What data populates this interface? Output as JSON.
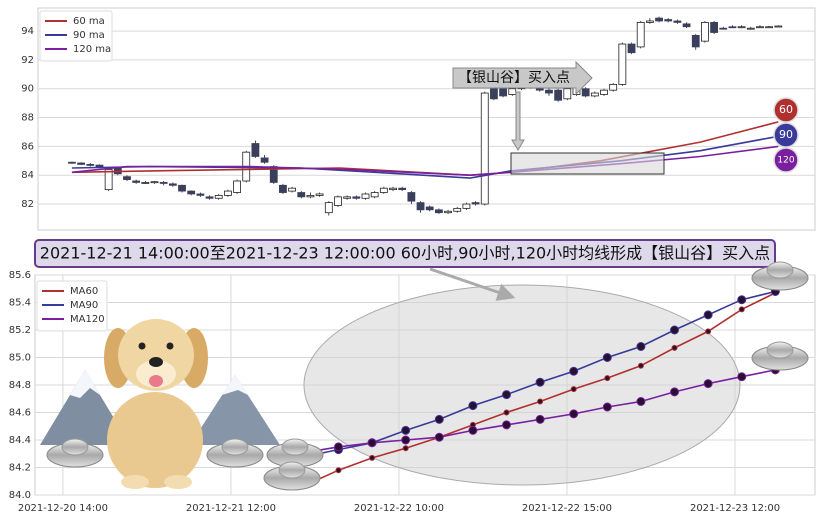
{
  "chart_data": [
    {
      "type": "candlestick",
      "legend": "upper left",
      "grid": true,
      "xlim": [
        -3.7,
        81
      ],
      "ylim": [
        80.2,
        95.6
      ],
      "yticks": [
        82,
        84,
        86,
        88,
        90,
        92,
        94
      ],
      "up_color": "#ffffff",
      "down_color": "#3a3f5c",
      "x": [
        0,
        1,
        2,
        3,
        4,
        5,
        6,
        7,
        8,
        9,
        10,
        11,
        12,
        13,
        14,
        15,
        16,
        17,
        18,
        19,
        20,
        21,
        22,
        23,
        24,
        25,
        26,
        27,
        28,
        29,
        30,
        31,
        32,
        33,
        34,
        35,
        36,
        37,
        38,
        39,
        40,
        41,
        42,
        43,
        44,
        45,
        46,
        47,
        48,
        49,
        50,
        51,
        52,
        53,
        54,
        55,
        56,
        57,
        58,
        59,
        60,
        61,
        62,
        63,
        64,
        65,
        66,
        67,
        68,
        69,
        70,
        71,
        72,
        73,
        74,
        75,
        76,
        77
      ],
      "open": [
        84.9,
        84.85,
        84.75,
        84.7,
        83.0,
        84.5,
        83.9,
        83.6,
        83.5,
        83.5,
        83.5,
        83.4,
        83.3,
        82.9,
        82.7,
        82.5,
        82.4,
        82.6,
        82.8,
        83.6,
        86.2,
        85.2,
        84.6,
        83.3,
        82.9,
        82.8,
        82.5,
        82.6,
        81.4,
        81.9,
        82.4,
        82.5,
        82.4,
        82.5,
        82.8,
        83.0,
        83.1,
        82.8,
        82.1,
        81.8,
        81.6,
        81.4,
        81.5,
        81.7,
        82.1,
        82.0,
        90.1,
        90.1,
        89.6,
        90.0,
        90.3,
        90.2,
        89.9,
        89.9,
        89.3,
        89.6,
        90.0,
        89.5,
        89.6,
        89.9,
        90.3,
        93.1,
        92.9,
        94.6,
        94.9,
        94.8,
        94.7,
        94.5,
        93.7,
        93.3,
        94.6,
        94.2,
        94.3,
        94.3,
        94.2,
        94.3,
        94.3,
        94.3
      ],
      "high": [
        84.95,
        84.9,
        84.85,
        84.75,
        84.5,
        84.6,
        84.0,
        83.7,
        83.6,
        83.6,
        83.6,
        83.5,
        83.35,
        82.95,
        82.8,
        82.6,
        82.7,
        83.0,
        83.7,
        85.7,
        86.4,
        85.4,
        84.7,
        83.4,
        83.2,
        82.9,
        82.8,
        82.8,
        82.2,
        82.6,
        82.6,
        82.6,
        82.8,
        82.9,
        83.2,
        83.2,
        83.2,
        82.9,
        82.2,
        81.9,
        81.7,
        81.6,
        81.8,
        82.1,
        82.2,
        89.8,
        90.3,
        90.2,
        90.1,
        90.4,
        90.5,
        90.4,
        90.1,
        90.0,
        90.1,
        90.5,
        90.1,
        89.8,
        90.0,
        90.4,
        93.2,
        93.2,
        94.7,
        94.9,
        95.0,
        94.9,
        94.8,
        94.6,
        93.8,
        94.7,
        94.7,
        94.3,
        94.4,
        94.4,
        94.3,
        94.4,
        94.35,
        94.4
      ],
      "low": [
        84.8,
        84.7,
        84.6,
        84.5,
        82.9,
        84.0,
        83.6,
        83.4,
        83.4,
        83.4,
        83.3,
        83.2,
        82.8,
        82.6,
        82.5,
        82.3,
        82.3,
        82.5,
        82.7,
        83.5,
        85.2,
        84.8,
        83.4,
        82.7,
        82.8,
        82.4,
        82.4,
        82.5,
        81.2,
        81.8,
        82.3,
        82.3,
        82.3,
        82.4,
        82.7,
        82.9,
        82.9,
        82.0,
        81.4,
        81.5,
        81.3,
        81.3,
        81.4,
        81.6,
        81.9,
        81.9,
        89.2,
        89.4,
        89.5,
        89.9,
        90.0,
        89.8,
        89.5,
        89.1,
        89.2,
        89.5,
        89.4,
        89.4,
        89.5,
        89.8,
        90.2,
        92.4,
        92.8,
        94.5,
        94.6,
        94.6,
        94.5,
        94.2,
        92.7,
        93.2,
        93.8,
        94.1,
        94.2,
        94.2,
        94.1,
        94.2,
        94.25,
        94.3
      ],
      "close": [
        84.85,
        84.75,
        84.7,
        84.55,
        84.4,
        84.1,
        83.7,
        83.5,
        83.5,
        83.55,
        83.45,
        83.3,
        82.9,
        82.7,
        82.6,
        82.4,
        82.6,
        82.9,
        83.6,
        85.6,
        85.3,
        84.9,
        83.5,
        82.8,
        83.1,
        82.5,
        82.6,
        82.7,
        82.1,
        82.5,
        82.5,
        82.4,
        82.7,
        82.8,
        83.1,
        83.1,
        83.0,
        82.2,
        81.6,
        81.6,
        81.4,
        81.5,
        81.7,
        82.0,
        82.0,
        89.7,
        89.3,
        89.5,
        90.0,
        90.3,
        90.2,
        89.9,
        89.7,
        89.2,
        90.0,
        90.4,
        89.5,
        89.7,
        89.9,
        90.3,
        93.1,
        92.5,
        94.6,
        94.7,
        94.7,
        94.7,
        94.6,
        94.3,
        92.9,
        94.6,
        93.9,
        94.15,
        94.25,
        94.3,
        94.2,
        94.3,
        94.3,
        94.35
      ],
      "series": [
        {
          "name": "60 ma",
          "color": "#b03030",
          "badge": "60",
          "x": [
            0,
            8.5,
            29.2,
            43.4,
            47.8,
            57.6,
            68.5,
            77
          ],
          "values": [
            84.2,
            84.3,
            84.5,
            84.0,
            84.2,
            85.0,
            86.3,
            87.7
          ]
        },
        {
          "name": "90 ma",
          "color": "#3a3a9a",
          "badge": "90",
          "x": [
            0,
            8.5,
            24.9,
            35.8,
            43.4,
            47.8,
            59.8,
            68.5,
            77
          ],
          "values": [
            84.5,
            84.6,
            84.5,
            84.1,
            83.8,
            84.3,
            85.0,
            85.7,
            86.7
          ]
        },
        {
          "name": "120 ma",
          "color": "#7a1fa0",
          "badge": "120",
          "x": [
            0,
            6,
            19.6,
            30,
            43.4,
            47.8,
            59.8,
            68.5,
            77
          ],
          "values": [
            84.2,
            84.6,
            84.6,
            84.4,
            84.0,
            84.2,
            84.8,
            85.3,
            86.0
          ]
        }
      ],
      "annotation": "【银山谷】买入点"
    },
    {
      "type": "line",
      "legend": "upper left",
      "grid": true,
      "banner": "2021-12-21 14:00:00至2021-12-23 12:00:00 60小时,90小时,120小时均线形成【银山谷】买入点",
      "xlim": [
        -1.03,
        22.18
      ],
      "ylim": [
        84.0,
        85.6
      ],
      "xticks": [
        {
          "value": -0.2,
          "label": "2021-12-20 14:00"
        },
        {
          "value": 4.8,
          "label": "2021-12-21 12:00"
        },
        {
          "value": 9.8,
          "label": "2021-12-22 10:00"
        },
        {
          "value": 14.8,
          "label": "2021-12-22 15:00"
        },
        {
          "value": 19.8,
          "label": "2021-12-23 12:00"
        }
      ],
      "yticks": [
        {
          "value": 84.0,
          "label": "84.0"
        },
        {
          "value": 84.2,
          "label": "84.2"
        },
        {
          "value": 84.4,
          "label": "84.4"
        },
        {
          "value": 84.6,
          "label": "84.6"
        },
        {
          "value": 84.8,
          "label": "84.8"
        },
        {
          "value": 85.0,
          "label": "85.0"
        },
        {
          "value": 85.2,
          "label": "85.2"
        },
        {
          "value": 85.4,
          "label": "85.4"
        },
        {
          "value": 85.6,
          "label": "85.6"
        }
      ],
      "x": [
        7,
        8,
        9,
        10,
        11,
        12,
        13,
        14,
        15,
        16,
        17,
        18,
        19,
        20,
        21
      ],
      "series": [
        {
          "name": "MA60",
          "color": "#b03030",
          "values": [
            84.07,
            84.18,
            84.27,
            84.34,
            84.42,
            84.51,
            84.6,
            84.68,
            84.77,
            84.85,
            84.94,
            85.07,
            85.19,
            85.35,
            85.47
          ]
        },
        {
          "name": "MA90",
          "color": "#3a3a9a",
          "values": [
            84.28,
            84.33,
            84.38,
            84.47,
            84.55,
            84.65,
            84.73,
            84.82,
            84.9,
            85.0,
            85.08,
            85.2,
            85.31,
            85.42,
            85.48
          ]
        },
        {
          "name": "MA120",
          "color": "#7a1fa0",
          "values": [
            84.31,
            84.35,
            84.38,
            84.4,
            84.42,
            84.47,
            84.51,
            84.55,
            84.59,
            84.64,
            84.68,
            84.75,
            84.81,
            84.86,
            84.91
          ]
        }
      ]
    }
  ]
}
